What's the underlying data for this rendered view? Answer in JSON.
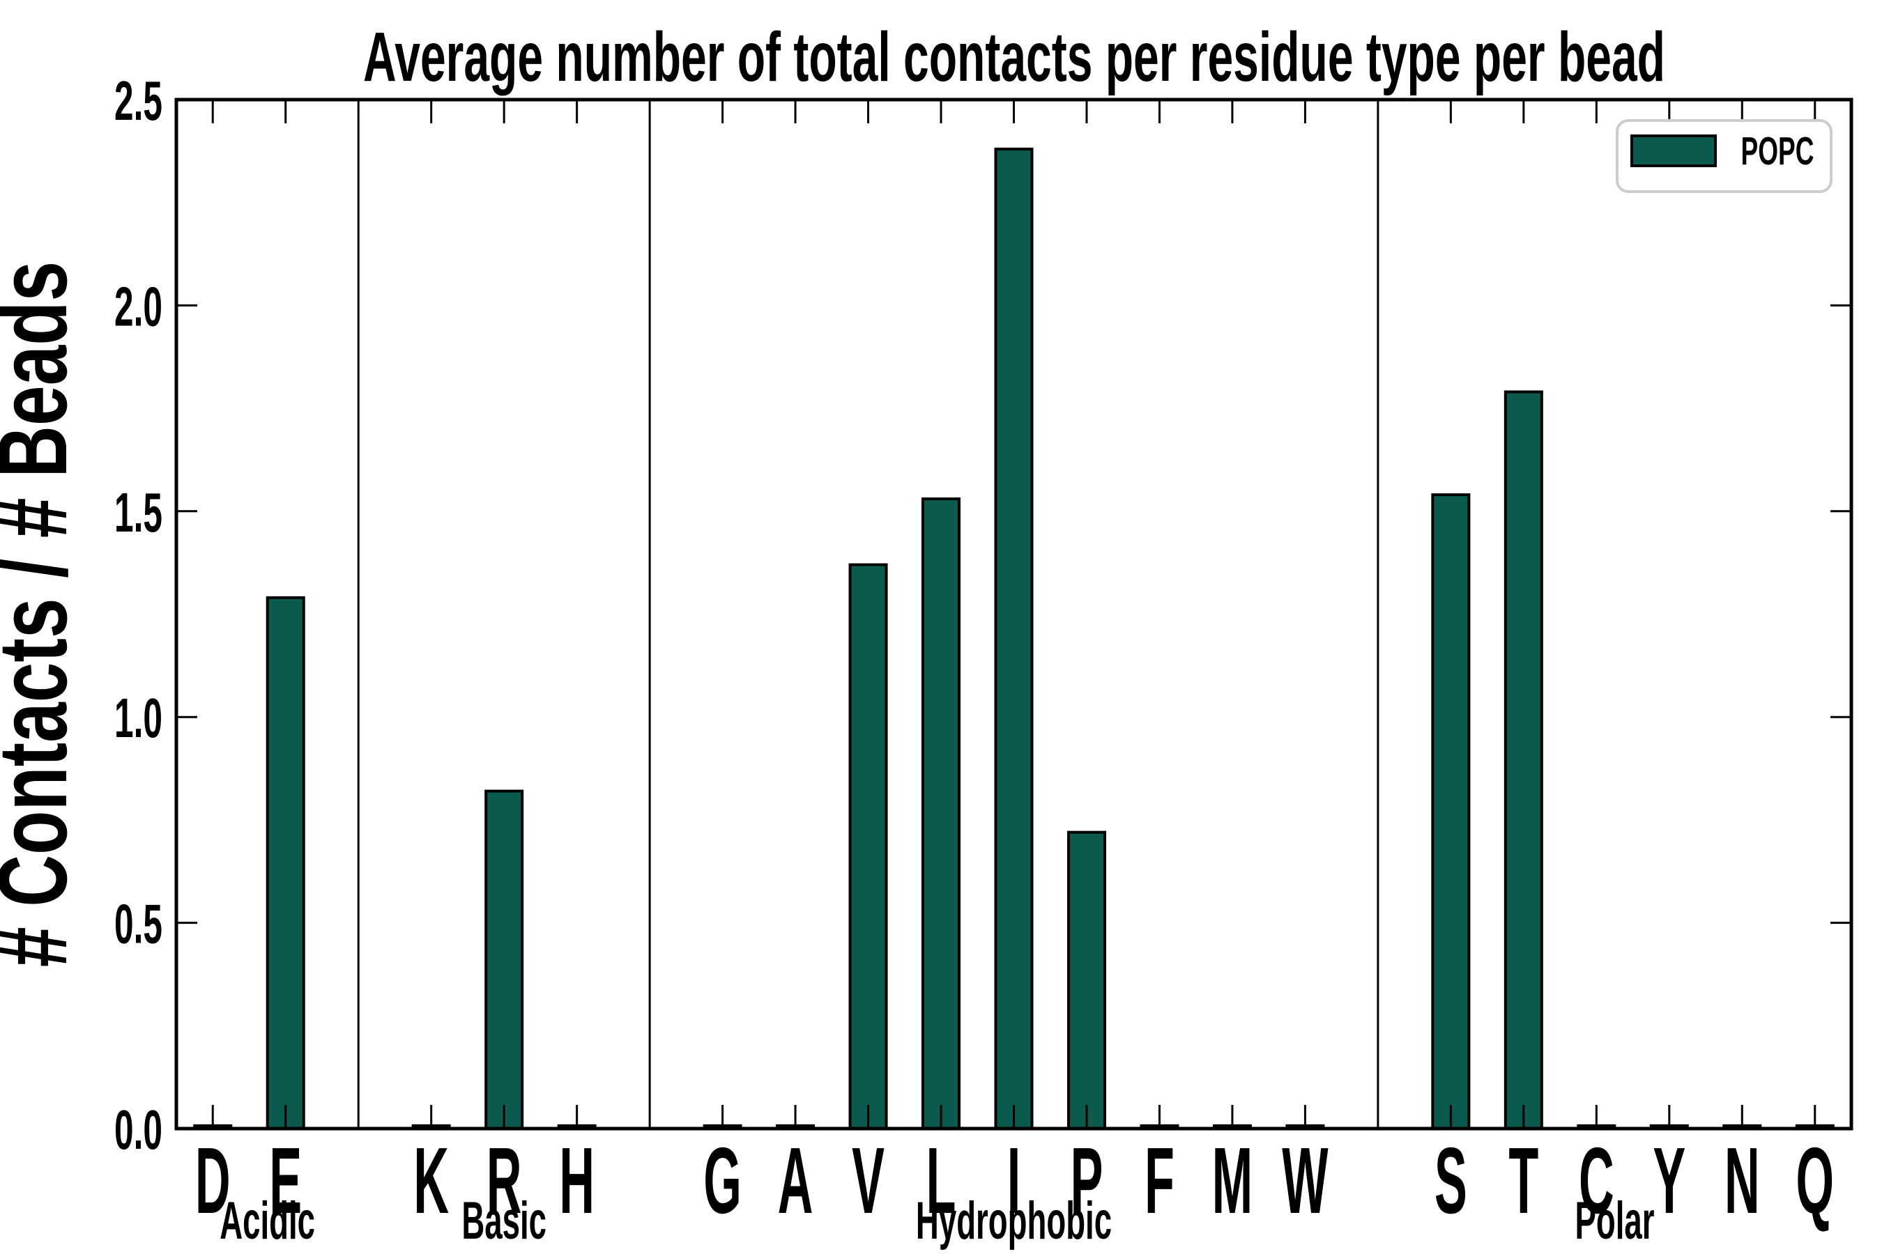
{
  "page": {
    "background_color": "#ffffff"
  },
  "chart_data": {
    "type": "bar",
    "title": "Average number of total contacts per residue type per bead",
    "ylabel": "# Contacts / # Beads",
    "xlabel": "",
    "ylim": [
      0,
      2.5
    ],
    "yticks": [
      "0.0",
      "0.5",
      "1.0",
      "1.5",
      "2.0",
      "2.5"
    ],
    "grid": false,
    "bar_color": "#0a5a4e",
    "bar_edge_color": "#000000",
    "axis_color": "#000000",
    "legend": {
      "position": "upper-right",
      "entries": [
        {
          "label": "POPC",
          "color": "#0a5a4e"
        }
      ],
      "border_color": "#cccccc"
    },
    "groups": [
      {
        "name": "Acidic",
        "categories": [
          "D",
          "E"
        ],
        "values": [
          0.007,
          1.29
        ]
      },
      {
        "name": "Basic",
        "categories": [
          "K",
          "R",
          "H"
        ],
        "values": [
          0.007,
          0.82,
          0.007
        ]
      },
      {
        "name": "Hydrophobic",
        "categories": [
          "G",
          "A",
          "V",
          "L",
          "I",
          "P",
          "F",
          "M",
          "W"
        ],
        "values": [
          0.007,
          0.007,
          1.37,
          1.53,
          2.38,
          0.72,
          0.007,
          0.007,
          0.007
        ]
      },
      {
        "name": "Polar",
        "categories": [
          "S",
          "T",
          "C",
          "Y",
          "N",
          "Q"
        ],
        "values": [
          1.54,
          1.79,
          0.007,
          0.007,
          0.007,
          0.007
        ]
      }
    ],
    "series": [
      {
        "name": "POPC"
      }
    ]
  }
}
